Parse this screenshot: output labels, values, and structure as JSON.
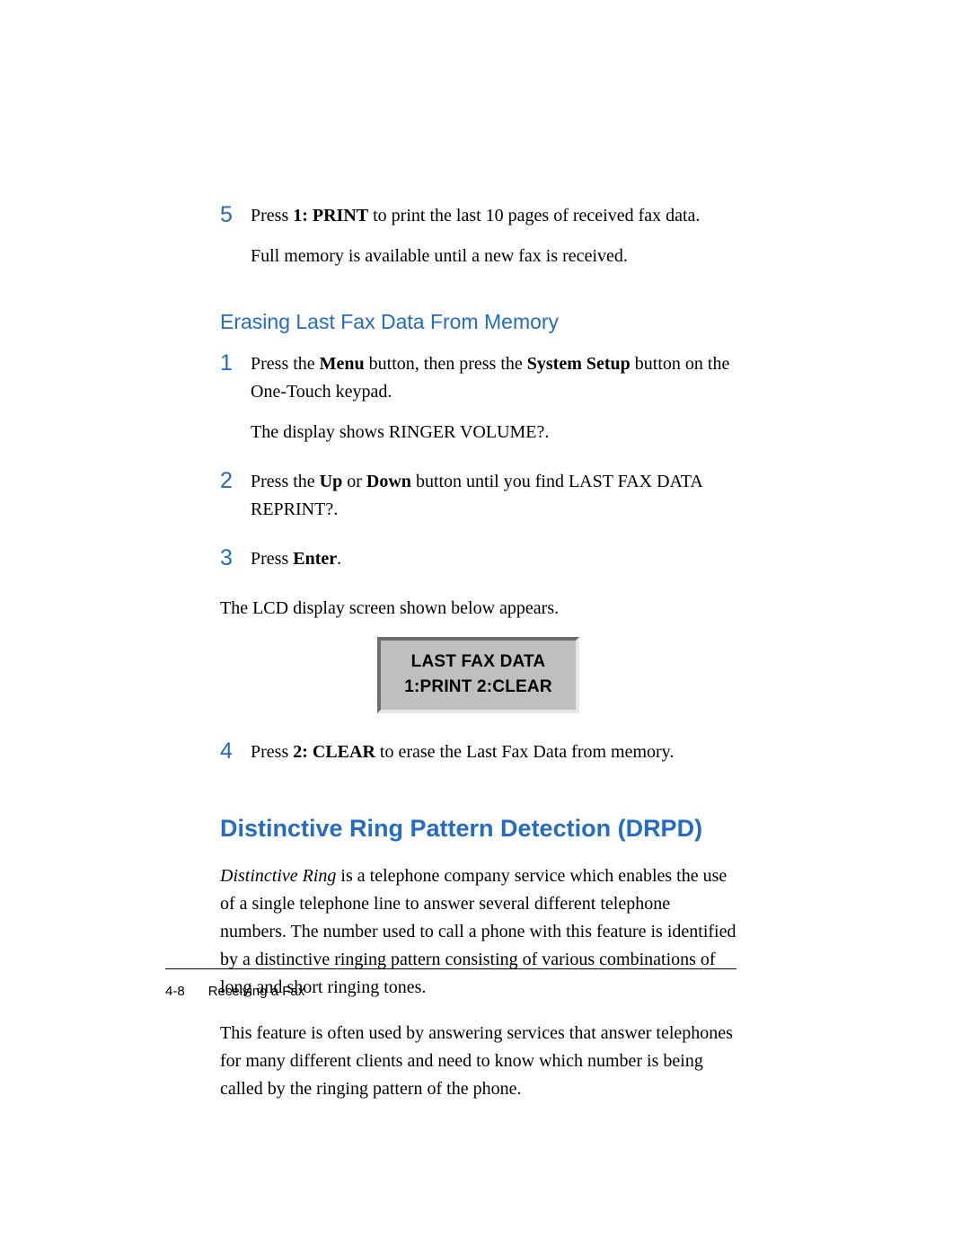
{
  "colors": {
    "accent": "#236bc5",
    "text": "#000000",
    "lcd_bg": "#bfbfbf",
    "lcd_border_dark": "#6e6e6e",
    "lcd_border_light": "#e6e6e6",
    "page_bg": "#ffffff"
  },
  "step5": {
    "num": "5",
    "line1_a": "Press ",
    "line1_b": "1: PRINT",
    "line1_c": " to print the last 10 pages of received fax data.",
    "line2": "Full memory is available until a new fax is received."
  },
  "subheading": "Erasing Last Fax Data From Memory",
  "erase": {
    "s1": {
      "num": "1",
      "a": "Press the ",
      "b": "Menu",
      "c": " button, then press the ",
      "d": "System Setup",
      "e": " button on the One-Touch keypad.",
      "line2": "The display shows RINGER VOLUME?."
    },
    "s2": {
      "num": "2",
      "a": "Press the ",
      "b": "Up",
      "c": " or ",
      "d": "Down",
      "e": " button  until you find LAST FAX DATA REPRINT?."
    },
    "s3": {
      "num": "3",
      "a": "Press ",
      "b": "Enter",
      "c": "."
    },
    "after": "The LCD display screen shown below appears.",
    "lcd_line1": "LAST FAX DATA",
    "lcd_line2": "1:PRINT  2:CLEAR",
    "s4": {
      "num": "4",
      "a": "Press ",
      "b": "2: CLEAR",
      "c": " to erase the Last Fax Data from memory."
    }
  },
  "drpd": {
    "heading": "Distinctive Ring Pattern Detection (DRPD)",
    "p1_a": "Distinctive Ring",
    "p1_b": " is a telephone company service which enables the use of a single telephone line to answer several different telephone numbers.  The number used to call a phone with this feature is identified by a distinctive ringing pattern consisting of various combinations of long and short ringing tones.",
    "p2": "This feature is often used by answering services that answer telephones for many different clients and need to know which number is being called by the ringing pattern of the phone."
  },
  "footer": {
    "pagenum": "4-8",
    "section": "Receiving a Fax"
  }
}
